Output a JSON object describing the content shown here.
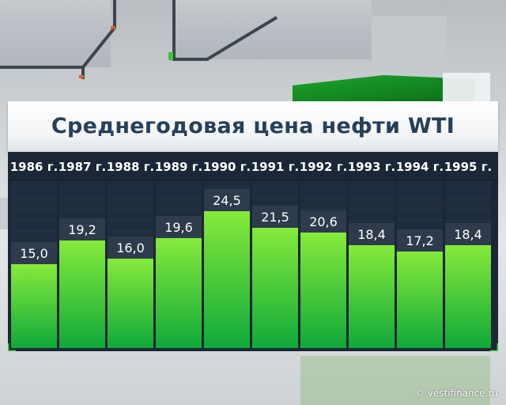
{
  "chart_data": {
    "type": "bar",
    "title": "Среднегодовая цена нефти WTI",
    "categories": [
      "1986 г.",
      "1987 г.",
      "1988 г.",
      "1989 г.",
      "1990 г.",
      "1991 г.",
      "1992 г.",
      "1993 г.",
      "1994 г.",
      "1995 г."
    ],
    "values": [
      15.0,
      19.2,
      16.0,
      19.6,
      24.5,
      21.5,
      20.6,
      18.4,
      17.2,
      18.4
    ],
    "value_labels": [
      "15,0",
      "19,2",
      "16,0",
      "19,6",
      "24,5",
      "21,5",
      "20,6",
      "18,4",
      "17,2",
      "18,4"
    ],
    "ylim": [
      0,
      30
    ],
    "grid": false,
    "xlabel": "",
    "ylabel": ""
  },
  "colors": {
    "bar_top": "#86ea3b",
    "bar_bottom": "#0fa93a",
    "column_bg": "#1f2c3c",
    "label_bg": "#2e3b4c",
    "title_text": "#27405a",
    "corner_marker": "#3ec43a"
  },
  "footer": {
    "watermark": "© vestifinance.ru"
  }
}
